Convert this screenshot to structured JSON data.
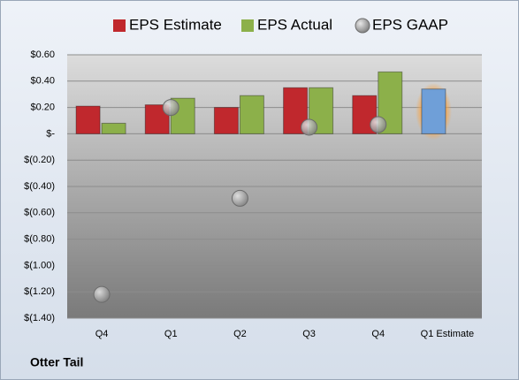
{
  "chart_data": {
    "type": "bar",
    "footer": "Otter Tail",
    "categories": [
      "Q4",
      "Q1",
      "Q2",
      "Q3",
      "Q4",
      "Q1 Estimate"
    ],
    "series": [
      {
        "name": "EPS Estimate",
        "type": "bar",
        "color": "#c0282d",
        "point_colors": [
          "#c0282d",
          "#c0282d",
          "#c0282d",
          "#c0282d",
          "#c0282d",
          "#6f9fd8"
        ],
        "values": [
          0.21,
          0.22,
          0.2,
          0.35,
          0.29,
          0.34
        ]
      },
      {
        "name": "EPS Actual",
        "type": "bar",
        "color": "#8cb04a",
        "values": [
          0.08,
          0.27,
          0.29,
          0.35,
          0.47,
          null
        ]
      },
      {
        "name": "EPS GAAP",
        "type": "scatter",
        "color": "#a6a6a6",
        "values": [
          -1.22,
          0.2,
          -0.49,
          0.05,
          0.07,
          null
        ]
      }
    ],
    "ylim": [
      -1.4,
      0.6
    ],
    "yticks": [
      {
        "value": 0.6,
        "label": "$0.60"
      },
      {
        "value": 0.4,
        "label": "$0.40"
      },
      {
        "value": 0.2,
        "label": "$0.20"
      },
      {
        "value": 0,
        "label": "$-"
      },
      {
        "value": -0.2,
        "label": "$(0.20)"
      },
      {
        "value": -0.4,
        "label": "$(0.40)"
      },
      {
        "value": -0.6,
        "label": "$(0.60)"
      },
      {
        "value": -0.8,
        "label": "$(0.80)"
      },
      {
        "value": -1.0,
        "label": "$(1.00)"
      },
      {
        "value": -1.2,
        "label": "$(1.20)"
      },
      {
        "value": -1.4,
        "label": "$(1.40)"
      }
    ],
    "grid": true
  }
}
